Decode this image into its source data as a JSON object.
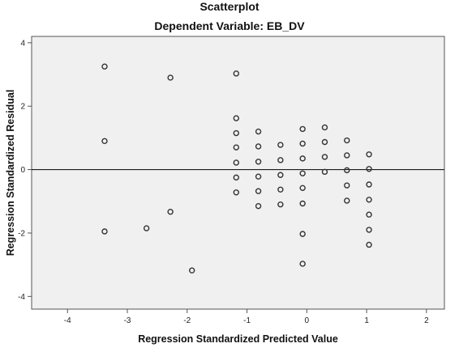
{
  "chart_data": {
    "type": "scatter",
    "title": "Scatterplot",
    "subtitle": "Dependent Variable: EB_DV",
    "xlabel": "Regression Standardized Predicted Value",
    "ylabel": "Regression Standardized Residual",
    "xlim": [
      -4.6,
      2.3
    ],
    "ylim": [
      -4.4,
      4.2
    ],
    "xticks": [
      -4,
      -3,
      -2,
      -1,
      0,
      1,
      2
    ],
    "yticks": [
      -4,
      -2,
      0,
      2,
      4
    ],
    "reference_line_y": 0,
    "grid": false,
    "colors": {
      "plot_background": "#f0f0f0",
      "marker_stroke": "#333333",
      "reference_line": "#000000"
    },
    "points": [
      {
        "x": -3.38,
        "y": 3.25
      },
      {
        "x": -3.38,
        "y": 0.9
      },
      {
        "x": -3.38,
        "y": -1.95
      },
      {
        "x": -2.68,
        "y": -1.85
      },
      {
        "x": -2.28,
        "y": 2.9
      },
      {
        "x": -2.28,
        "y": -1.33
      },
      {
        "x": -1.92,
        "y": -3.18
      },
      {
        "x": -1.18,
        "y": 3.03
      },
      {
        "x": -1.18,
        "y": 1.62
      },
      {
        "x": -1.18,
        "y": 1.15
      },
      {
        "x": -1.18,
        "y": 0.7
      },
      {
        "x": -1.18,
        "y": 0.22
      },
      {
        "x": -1.18,
        "y": -0.25
      },
      {
        "x": -1.18,
        "y": -0.72
      },
      {
        "x": -0.81,
        "y": 1.2
      },
      {
        "x": -0.81,
        "y": 0.73
      },
      {
        "x": -0.81,
        "y": 0.25
      },
      {
        "x": -0.81,
        "y": -0.22
      },
      {
        "x": -0.81,
        "y": -0.68
      },
      {
        "x": -0.81,
        "y": -1.15
      },
      {
        "x": -0.44,
        "y": 0.78
      },
      {
        "x": -0.44,
        "y": 0.3
      },
      {
        "x": -0.44,
        "y": -0.17
      },
      {
        "x": -0.44,
        "y": -0.63
      },
      {
        "x": -0.44,
        "y": -1.1
      },
      {
        "x": -0.07,
        "y": 1.28
      },
      {
        "x": -0.07,
        "y": 0.82
      },
      {
        "x": -0.07,
        "y": 0.35
      },
      {
        "x": -0.07,
        "y": -0.12
      },
      {
        "x": -0.07,
        "y": -0.58
      },
      {
        "x": -0.07,
        "y": -1.07
      },
      {
        "x": -0.07,
        "y": -2.03
      },
      {
        "x": -0.07,
        "y": -2.97
      },
      {
        "x": 0.3,
        "y": 1.33
      },
      {
        "x": 0.3,
        "y": 0.87
      },
      {
        "x": 0.3,
        "y": 0.4
      },
      {
        "x": 0.3,
        "y": -0.07
      },
      {
        "x": 0.67,
        "y": 0.92
      },
      {
        "x": 0.67,
        "y": 0.45
      },
      {
        "x": 0.67,
        "y": -0.02
      },
      {
        "x": 0.67,
        "y": -0.5
      },
      {
        "x": 0.67,
        "y": -0.98
      },
      {
        "x": 1.04,
        "y": 0.48
      },
      {
        "x": 1.04,
        "y": 0.02
      },
      {
        "x": 1.04,
        "y": -0.47
      },
      {
        "x": 1.04,
        "y": -0.95
      },
      {
        "x": 1.04,
        "y": -1.42
      },
      {
        "x": 1.04,
        "y": -1.9
      },
      {
        "x": 1.04,
        "y": -2.37
      }
    ]
  }
}
